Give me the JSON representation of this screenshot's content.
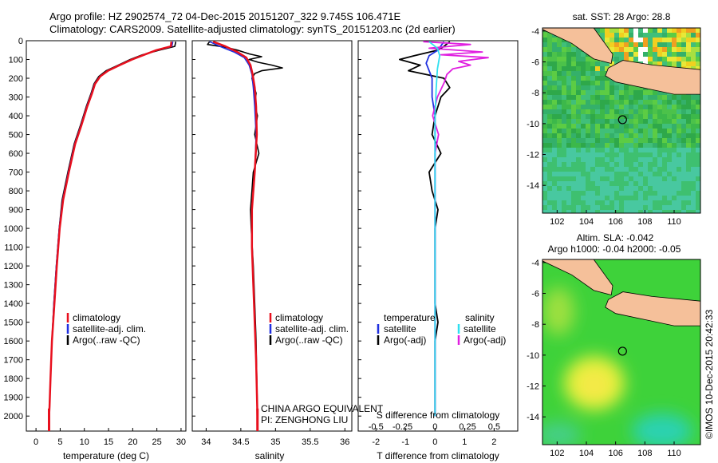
{
  "header": {
    "line1": "Argo profile: HZ 2902574_72 04-Dec-2015 20151207_322 9.745S 106.471E",
    "line2": "Climatology: CARS2009. Satellite-adjusted climatology: synTS_20151203.nc (2d earlier)"
  },
  "colors": {
    "climatology": "#e8101e",
    "satellite": "#1f2fe0",
    "argo": "#000000",
    "salinity_satellite": "#30e0f0",
    "salinity_argo": "#e020e0",
    "land": "#f5c09a"
  },
  "chart_data": [
    {
      "type": "line",
      "id": "temperature",
      "xlabel": "temperature (deg C)",
      "xlim": [
        -2,
        31
      ],
      "ylim": [
        0,
        2080
      ],
      "x_ticks": [
        0,
        5,
        10,
        15,
        20,
        25,
        30
      ],
      "y_ticks": [
        0,
        100,
        200,
        300,
        400,
        500,
        600,
        700,
        800,
        900,
        1000,
        1100,
        1200,
        1300,
        1400,
        1500,
        1600,
        1700,
        1800,
        1900,
        2000
      ],
      "legend": [
        "climatology",
        "satellite-adj. clim.",
        "Argo(..raw -QC)"
      ],
      "series": [
        {
          "key": "argo",
          "depth": [
            5,
            30,
            50,
            75,
            100,
            130,
            160,
            190,
            230,
            280,
            350,
            450,
            550,
            700,
            850,
            1000,
            1200,
            1400,
            1600,
            1800,
            2000,
            2050
          ],
          "values": [
            28.9,
            28.7,
            25.5,
            22.0,
            19.5,
            17.0,
            14.5,
            13.0,
            12.0,
            11.4,
            10.4,
            9.2,
            7.9,
            6.6,
            5.4,
            4.8,
            4.2,
            3.7,
            3.3,
            3.0,
            2.7,
            2.6
          ]
        },
        {
          "key": "satellite",
          "depth": [
            5,
            30,
            50,
            75,
            100,
            130,
            160,
            190,
            230,
            280,
            350,
            450,
            550,
            700,
            850,
            1000,
            1200,
            1400,
            1600,
            1800,
            2000,
            2050
          ],
          "values": [
            28.3,
            28.1,
            25.0,
            22.3,
            19.8,
            17.2,
            14.8,
            13.2,
            12.1,
            11.5,
            10.5,
            9.3,
            8.0,
            6.7,
            5.5,
            4.8,
            4.2,
            3.7,
            3.3,
            3.0,
            2.7,
            2.6
          ]
        },
        {
          "key": "climatology",
          "depth": [
            5,
            30,
            50,
            75,
            100,
            130,
            160,
            190,
            230,
            280,
            350,
            450,
            550,
            700,
            850,
            1000,
            1200,
            1400,
            1600,
            1800,
            1950,
            2000,
            2050
          ],
          "values": [
            28.0,
            27.9,
            24.9,
            22.4,
            19.9,
            17.3,
            14.9,
            13.3,
            12.2,
            11.6,
            10.6,
            9.4,
            8.1,
            6.8,
            5.6,
            4.9,
            4.3,
            3.8,
            3.3,
            3.0,
            2.8,
            2.7,
            2.7
          ]
        }
      ]
    },
    {
      "type": "line",
      "id": "salinity",
      "xlabel": "salinity",
      "xlim": [
        33.8,
        36.1
      ],
      "ylim": [
        0,
        2080
      ],
      "x_ticks": [
        34,
        34.5,
        35,
        35.5,
        36
      ],
      "legend": [
        "climatology",
        "satellite-adj. clim.",
        "Argo(..raw -QC)"
      ],
      "series": [
        {
          "key": "argo",
          "depth": [
            5,
            20,
            35,
            50,
            70,
            85,
            100,
            115,
            130,
            145,
            160,
            175,
            200,
            230,
            280,
            340,
            400,
            500,
            600,
            700,
            800,
            900,
            1000,
            1200,
            1400,
            1600,
            1800,
            2000,
            2050
          ],
          "values": [
            34.05,
            34.02,
            34.28,
            34.45,
            34.62,
            34.8,
            34.62,
            34.75,
            34.95,
            35.1,
            34.8,
            34.7,
            34.66,
            34.68,
            34.72,
            34.7,
            34.74,
            34.7,
            34.76,
            34.68,
            34.66,
            34.64,
            34.65,
            34.68,
            34.7,
            34.72,
            34.73,
            34.74,
            34.74
          ]
        },
        {
          "key": "satellite",
          "depth": [
            5,
            30,
            60,
            90,
            130,
            180,
            250,
            350,
            500,
            700,
            900,
            1100,
            1400,
            1700,
            2000,
            2050
          ],
          "values": [
            34.05,
            34.2,
            34.4,
            34.55,
            34.62,
            34.66,
            34.68,
            34.7,
            34.72,
            34.7,
            34.66,
            34.66,
            34.69,
            34.72,
            34.74,
            34.74
          ]
        },
        {
          "key": "climatology",
          "depth": [
            5,
            30,
            60,
            90,
            130,
            180,
            250,
            350,
            500,
            700,
            900,
            1100,
            1400,
            1700,
            2000,
            2050
          ],
          "values": [
            34.1,
            34.28,
            34.45,
            34.58,
            34.64,
            34.67,
            34.7,
            34.72,
            34.73,
            34.7,
            34.66,
            34.66,
            34.69,
            34.72,
            34.74,
            34.74
          ]
        }
      ],
      "annotation": [
        "CHINA ARGO EQUIVALENT",
        "PI: ZENGHONG LIU"
      ]
    },
    {
      "type": "line",
      "id": "difference",
      "xlabel": "T difference from climatology",
      "xlabel_top": "S difference from climatology",
      "xlim": [
        -2.6,
        2.8
      ],
      "ylim": [
        0,
        2080
      ],
      "x_ticks_bottom": [
        -2,
        -1,
        0,
        1,
        2
      ],
      "x_ticks_top": [
        "-0.5",
        "-0.25",
        "0",
        "0.25",
        "0.5"
      ],
      "legend_titles": [
        "temperature",
        "salinity"
      ],
      "legend": [
        "satellite",
        "Argo(-adj)",
        "satellite",
        "Argo(-adj)"
      ],
      "series": [
        {
          "key": "temperature_argo",
          "depth": [
            5,
            30,
            50,
            80,
            100,
            130,
            160,
            200,
            250,
            300,
            400,
            500,
            600,
            700,
            800,
            900,
            1000,
            1200,
            1400,
            1500,
            1600,
            1800,
            2000
          ],
          "values": [
            0.5,
            0.3,
            0.1,
            -0.7,
            -1.2,
            -0.5,
            -0.9,
            0.3,
            0.5,
            0.2,
            0.0,
            -0.1,
            0.2,
            -0.2,
            -0.1,
            0.1,
            0.0,
            0.0,
            0.0,
            0.1,
            0.0,
            0.0,
            0.0
          ]
        },
        {
          "key": "temperature_satellite",
          "depth": [
            5,
            50,
            80,
            120,
            200,
            300,
            400,
            600,
            800,
            1000,
            1400,
            2000
          ],
          "values": [
            0.3,
            0.1,
            -0.2,
            -0.3,
            -0.1,
            -0.1,
            0.0,
            0.0,
            0.0,
            0.0,
            0.0,
            0.0
          ]
        },
        {
          "key": "salinity_argo",
          "depth": [
            5,
            20,
            40,
            60,
            75,
            90,
            110,
            130,
            150,
            180,
            220,
            260,
            300,
            400,
            500,
            600,
            800,
            1000,
            1200,
            1600,
            2000
          ],
          "values": [
            -0.1,
            0.3,
            -0.05,
            0.4,
            0.05,
            0.45,
            0.2,
            0.3,
            0.15,
            0.1,
            0.08,
            0.05,
            0.02,
            -0.02,
            0.03,
            0.0,
            0.0,
            0.0,
            0.0,
            0.0,
            0.0
          ]
        },
        {
          "key": "salinity_satellite",
          "depth": [
            5,
            40,
            80,
            150,
            250,
            400,
            600,
            1000,
            1500,
            2000
          ],
          "values": [
            -0.05,
            0.02,
            0.04,
            0.02,
            0.01,
            0.0,
            0.0,
            0.0,
            0.0,
            0.0
          ]
        }
      ]
    },
    {
      "type": "heatmap",
      "id": "sst_map",
      "title": "sat. SST: 28 Argo: 28.8",
      "xlim": [
        101,
        111.8
      ],
      "ylim": [
        -15.8,
        -3.8
      ],
      "x_ticks": [
        102,
        104,
        106,
        108,
        110
      ],
      "y_ticks": [
        -4,
        -6,
        -8,
        -10,
        -12,
        -14
      ],
      "argo_position": [
        106.471,
        -9.745
      ]
    },
    {
      "type": "heatmap",
      "id": "sla_map",
      "title": "Altim. SLA: -0.042",
      "subtitle": "Argo h1000: -0.04 h2000: -0.05",
      "xlim": [
        101,
        111.8
      ],
      "ylim": [
        -15.8,
        -3.8
      ],
      "x_ticks": [
        102,
        104,
        106,
        108,
        110
      ],
      "y_ticks": [
        -4,
        -6,
        -8,
        -10,
        -12,
        -14
      ],
      "argo_position": [
        106.471,
        -9.745
      ]
    }
  ],
  "credit": "©IMOS 10-Dec-2015 20:42:33"
}
